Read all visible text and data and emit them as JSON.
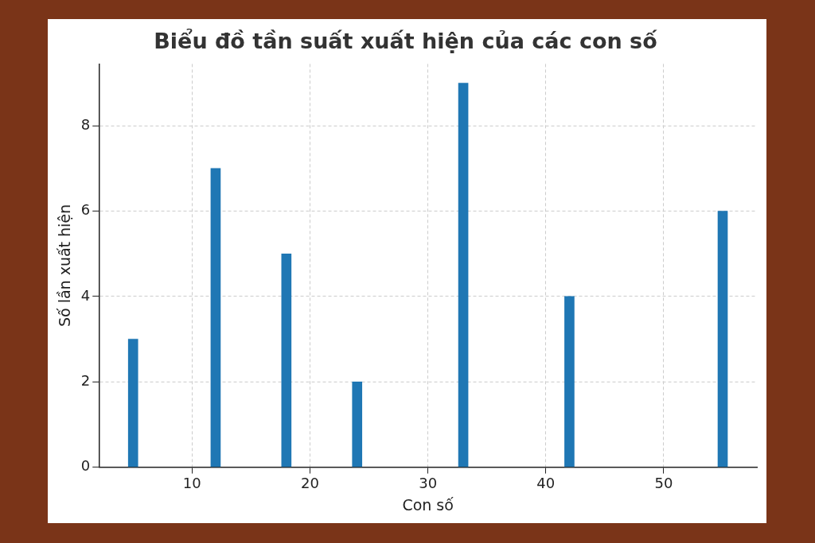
{
  "chart_data": {
    "type": "bar",
    "title": "Biểu đồ tần suất xuất hiện của các con số",
    "xlabel": "Con số",
    "ylabel": "Số lần xuất hiện",
    "x": [
      5,
      12,
      18,
      24,
      33,
      42,
      55
    ],
    "values": [
      3,
      7,
      5,
      2,
      9,
      4,
      6
    ],
    "color": "#1f77b4",
    "xlim": [
      2.1,
      57.9
    ],
    "xticks": [
      10,
      20,
      30,
      40,
      50
    ],
    "ylim": [
      0,
      9.45
    ],
    "yticks": [
      0,
      2,
      4,
      6,
      8
    ],
    "grid": true,
    "legend": false
  }
}
